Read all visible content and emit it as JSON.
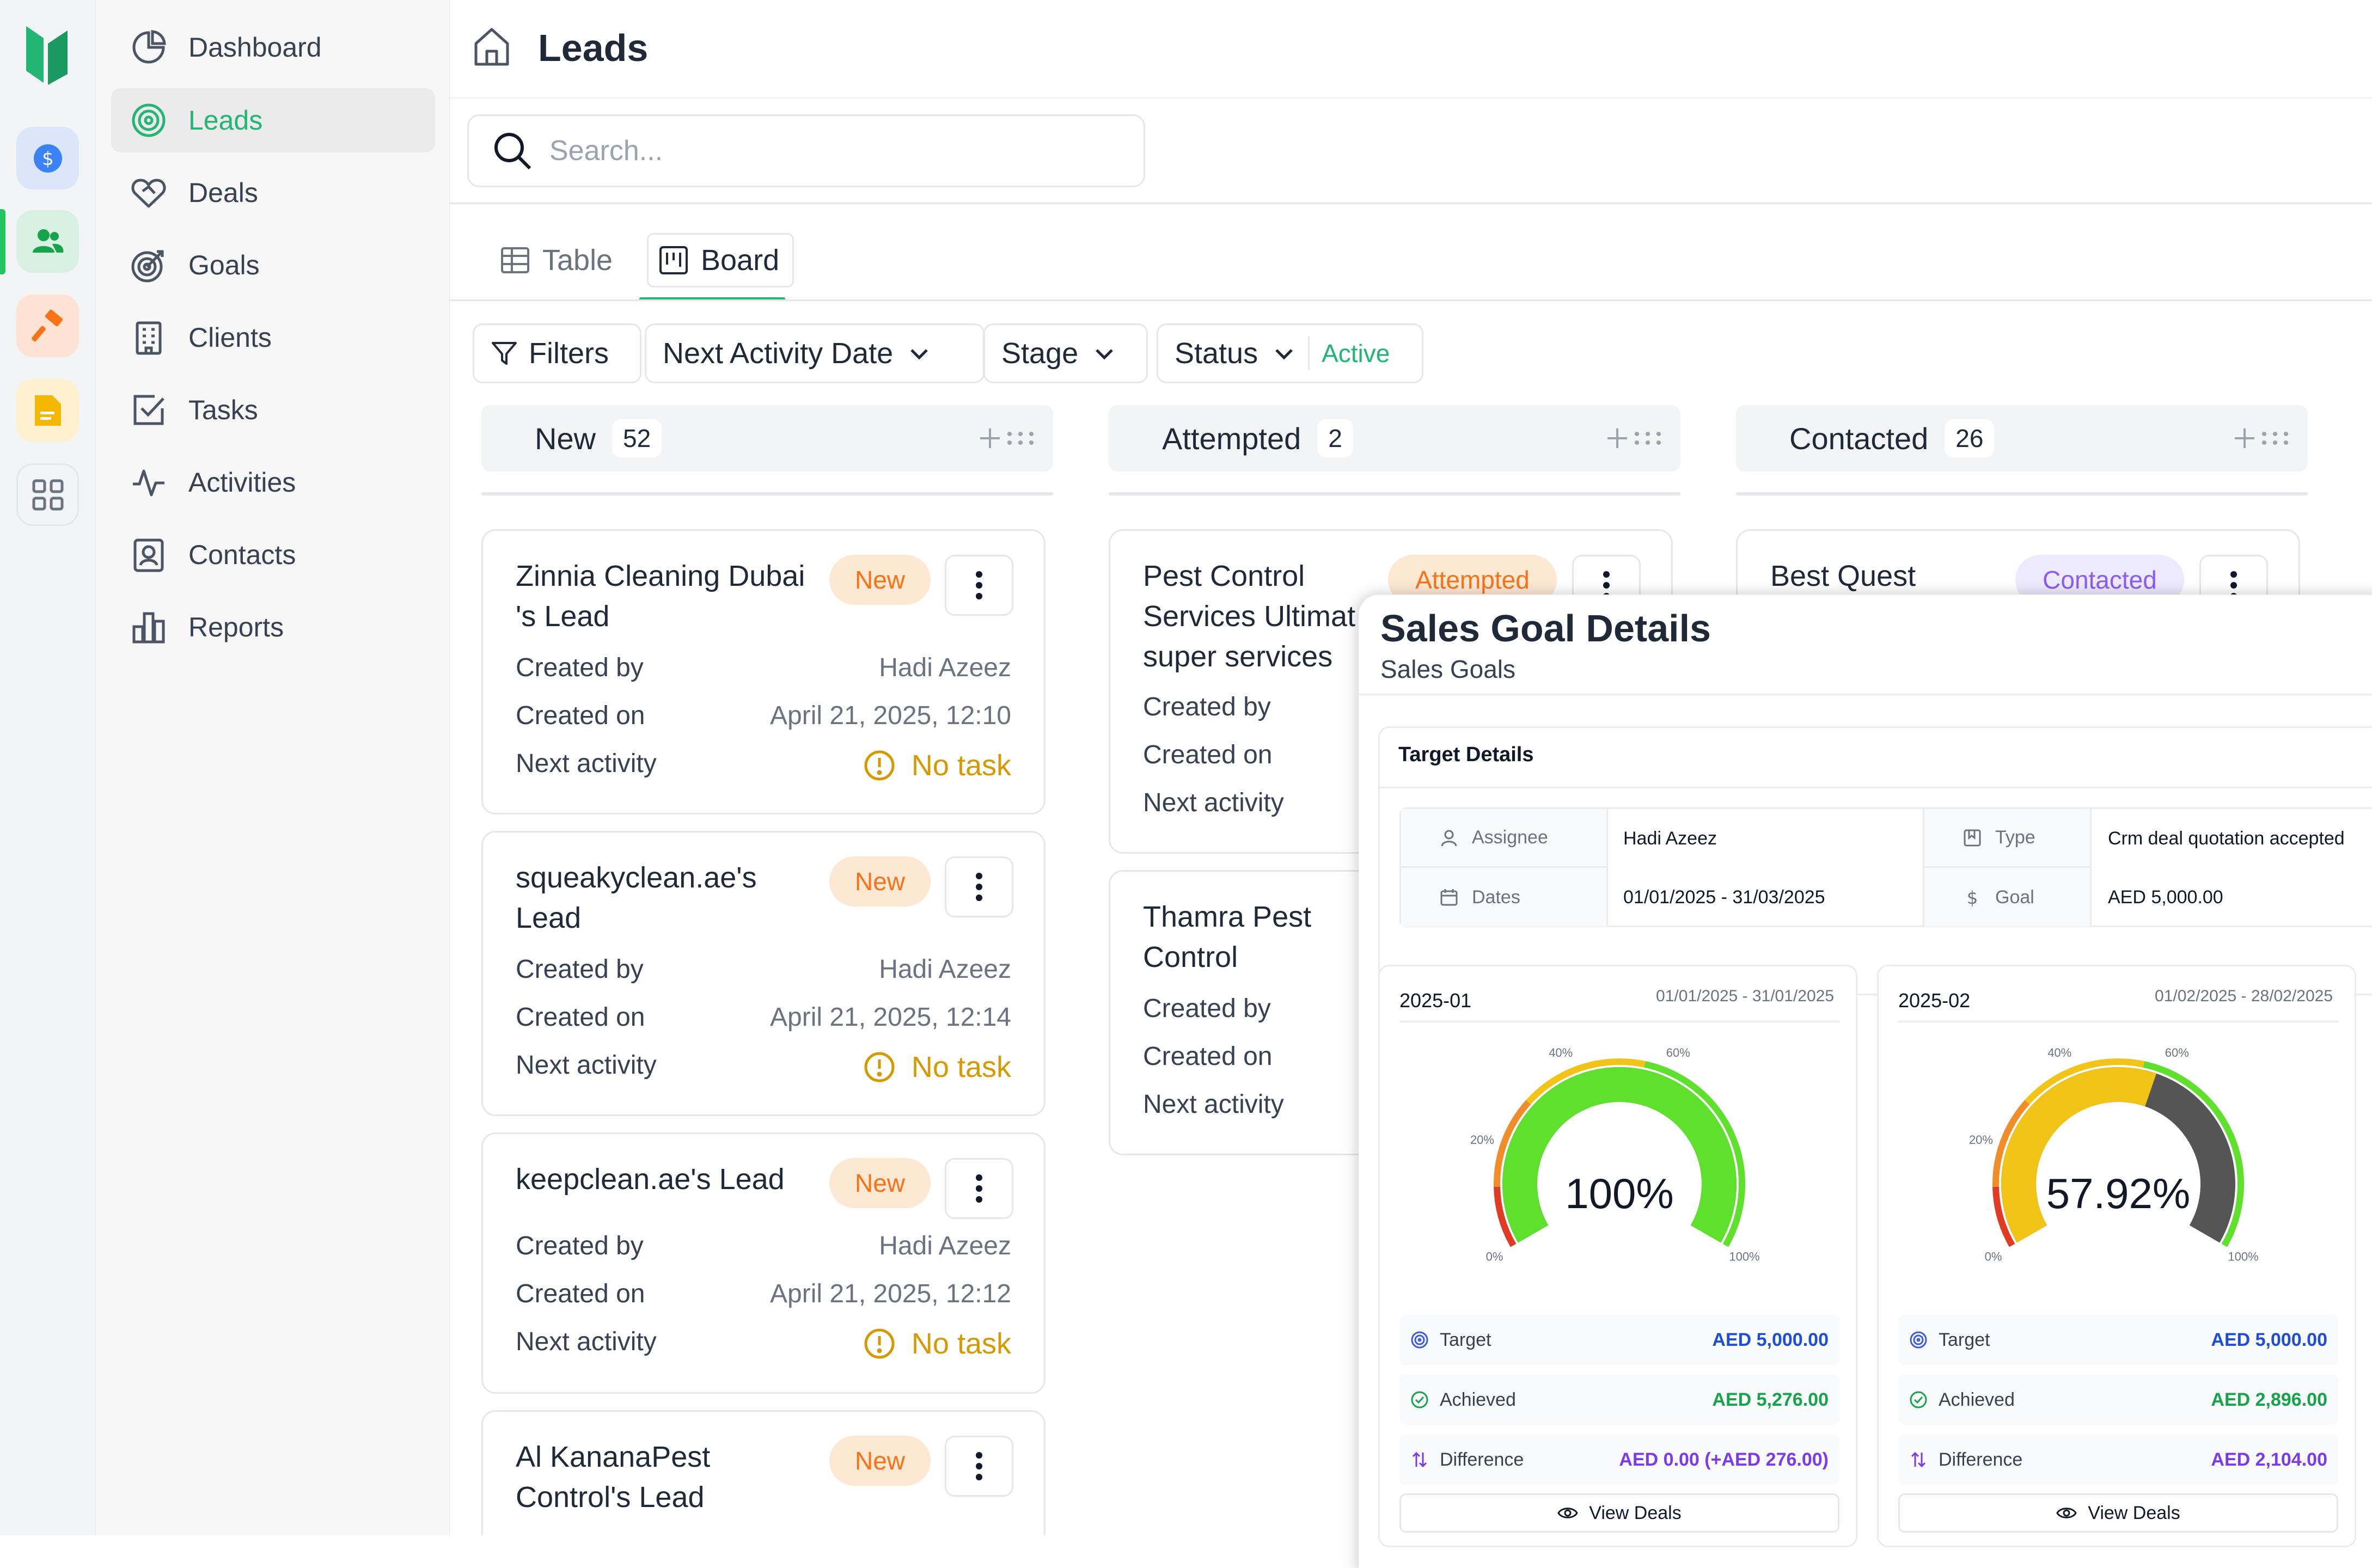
{
  "page": {
    "title": "Leads"
  },
  "search": {
    "placeholder": "Search..."
  },
  "sidebar": {
    "items": [
      {
        "label": "Dashboard",
        "icon": "pie-chart-icon"
      },
      {
        "label": "Leads",
        "icon": "target-icon"
      },
      {
        "label": "Deals",
        "icon": "handshake-icon"
      },
      {
        "label": "Goals",
        "icon": "goal-icon"
      },
      {
        "label": "Clients",
        "icon": "building-icon"
      },
      {
        "label": "Tasks",
        "icon": "checkbox-icon"
      },
      {
        "label": "Activities",
        "icon": "activity-icon"
      },
      {
        "label": "Contacts",
        "icon": "contact-icon"
      },
      {
        "label": "Reports",
        "icon": "bar-chart-icon"
      }
    ]
  },
  "views": {
    "table": "Table",
    "board": "Board"
  },
  "filters": {
    "filters_label": "Filters",
    "next_activity": "Next Activity Date",
    "stage": "Stage",
    "status": "Status",
    "status_value": "Active"
  },
  "columns": [
    {
      "title": "New",
      "count": "52"
    },
    {
      "title": "Attempted",
      "count": "2"
    },
    {
      "title": "Contacted",
      "count": "26"
    }
  ],
  "labels": {
    "created_by": "Created by",
    "created_on": "Created on",
    "next_activity": "Next activity",
    "no_task": "No task"
  },
  "cards_new": [
    {
      "title_1": "Zinnia Cleaning Dubai",
      "title_2": "'s Lead",
      "badge": "New",
      "created_by": "Hadi Azeez",
      "created_on": "April 21, 2025, 12:10"
    },
    {
      "title_1": "squeakyclean.ae's",
      "title_2": "Lead",
      "badge": "New",
      "created_by": "Hadi Azeez",
      "created_on": "April 21, 2025, 12:14"
    },
    {
      "title_1": "keepclean.ae's Lead",
      "badge": "New",
      "created_by": "Hadi Azeez",
      "created_on": "April 21, 2025, 12:12"
    },
    {
      "title_1": "Al KananaPest",
      "title_2": "Control's Lead",
      "badge": "New"
    }
  ],
  "cards_attempted": [
    {
      "title_1": "Pest Control",
      "title_2": "Services Ultimat",
      "title_3": "super services",
      "badge": "Attempted"
    },
    {
      "title_1": "Thamra Pest",
      "title_2": "Control"
    }
  ],
  "cards_contacted": [
    {
      "title_1": "Best Quest",
      "badge": "Contacted"
    }
  ],
  "sales_goal": {
    "title": "Sales Goal Details",
    "subtitle": "Sales Goals",
    "target_details": {
      "heading": "Target Details",
      "assignee_label": "Assignee",
      "assignee": "Hadi Azeez",
      "type_label": "Type",
      "type": "Crm deal quotation accepted",
      "dates_label": "Dates",
      "dates": "01/01/2025 - 31/03/2025",
      "goal_label": "Goal",
      "goal": "AED 5,000.00"
    },
    "gauge_ticks": [
      "0%",
      "20%",
      "40%",
      "60%",
      "100%"
    ],
    "row_labels": {
      "target": "Target",
      "achieved": "Achieved",
      "difference": "Difference"
    },
    "view_deals": "View Deals",
    "periods": [
      {
        "period": "2025-01",
        "range": "01/01/2025 - 31/01/2025",
        "percent_label": "100%",
        "progress": 1.0,
        "target": "AED 5,000.00",
        "achieved": "AED 5,276.00",
        "difference": "AED 0.00 (+AED 276.00)"
      },
      {
        "period": "2025-02",
        "range": "01/02/2025 - 28/02/2025",
        "percent_label": "57.92%",
        "progress": 0.5792,
        "target": "AED 5,000.00",
        "achieved": "AED 2,896.00",
        "difference": "AED 2,104.00"
      }
    ]
  },
  "colors": {
    "accent": "#22b573",
    "warning": "#d49a00",
    "target_value": "#1d4ed8",
    "achieved_value": "#16a34a",
    "difference_value": "#7c3aed",
    "gauge_green": "#5fe02c",
    "gauge_yellow": "#f2c417",
    "gauge_track": "#555555"
  }
}
